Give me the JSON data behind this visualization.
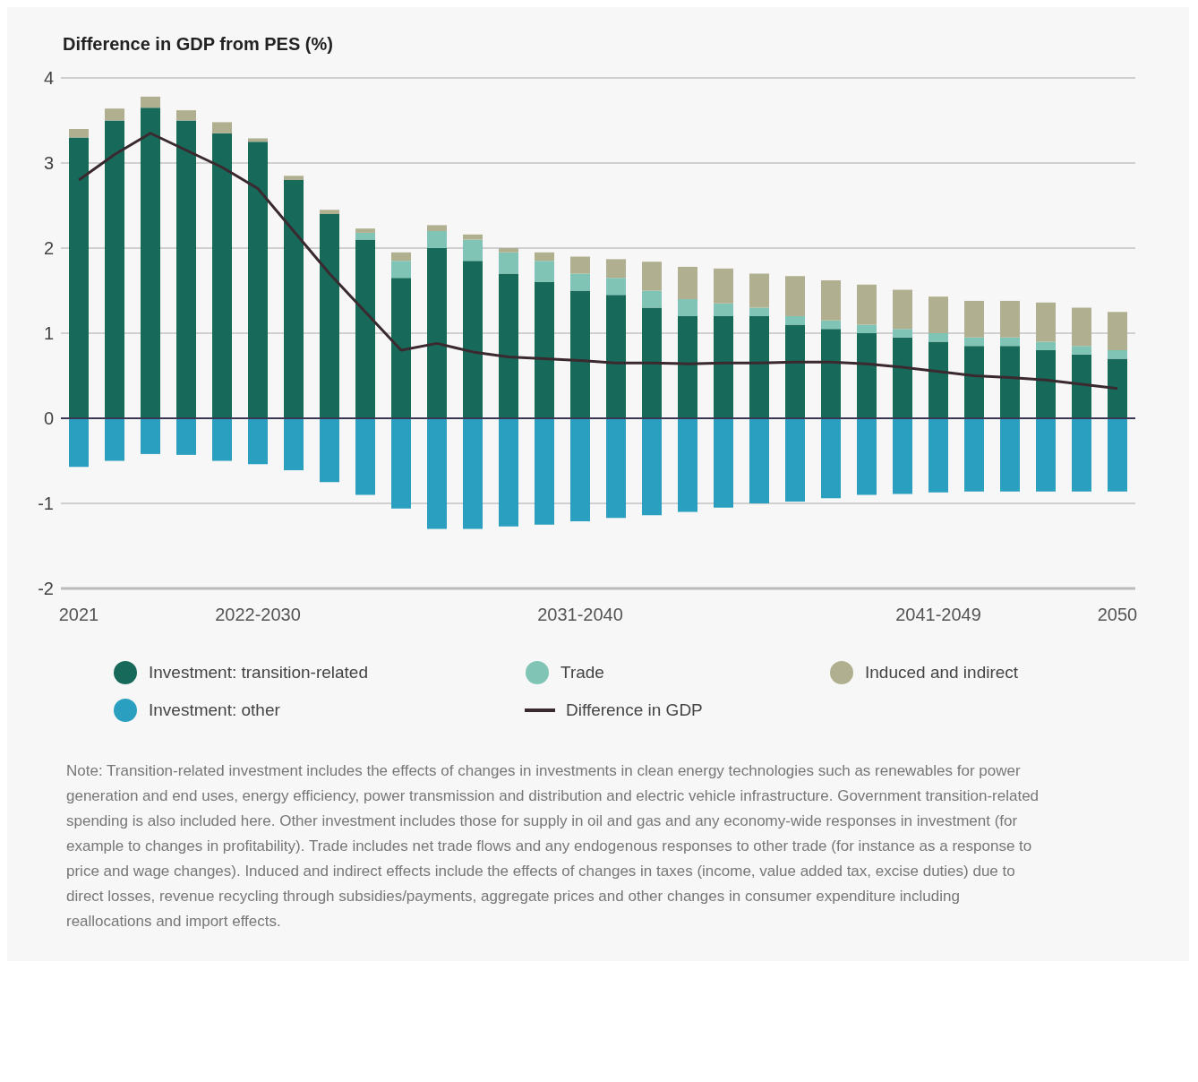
{
  "chart_data": {
    "type": "bar",
    "stacked": true,
    "title": "Difference in GDP from PES (%)",
    "categories": [
      "2021",
      null,
      null,
      null,
      null,
      "2022-2030",
      null,
      null,
      null,
      null,
      null,
      null,
      null,
      null,
      "2031-2040",
      null,
      null,
      null,
      null,
      null,
      null,
      null,
      null,
      null,
      "2041-2049",
      null,
      null,
      null,
      null,
      "2050"
    ],
    "series": [
      {
        "name": "Investment: transition-related",
        "color": "#17695a",
        "values": [
          3.3,
          3.5,
          3.65,
          3.5,
          3.35,
          3.25,
          2.8,
          2.4,
          2.1,
          1.65,
          2.0,
          1.85,
          1.7,
          1.6,
          1.5,
          1.45,
          1.3,
          1.2,
          1.2,
          1.2,
          1.1,
          1.05,
          1.0,
          0.95,
          0.9,
          0.85,
          0.85,
          0.8,
          0.75,
          0.7
        ]
      },
      {
        "name": "Trade",
        "color": "#7fc4b4",
        "values": [
          0,
          0,
          0,
          0,
          0,
          0,
          0,
          0,
          0.08,
          0.2,
          0.2,
          0.25,
          0.25,
          0.25,
          0.2,
          0.2,
          0.2,
          0.2,
          0.15,
          0.1,
          0.1,
          0.1,
          0.1,
          0.1,
          0.1,
          0.1,
          0.1,
          0.1,
          0.1,
          0.1
        ]
      },
      {
        "name": "Induced and indirect",
        "color": "#b0b090",
        "values": [
          0.1,
          0.14,
          0.13,
          0.12,
          0.13,
          0.04,
          0.05,
          0.05,
          0.05,
          0.1,
          0.07,
          0.06,
          0.05,
          0.1,
          0.2,
          0.22,
          0.34,
          0.38,
          0.41,
          0.4,
          0.47,
          0.47,
          0.47,
          0.46,
          0.43,
          0.43,
          0.43,
          0.46,
          0.45,
          0.45
        ]
      },
      {
        "name": "Investment: other",
        "color": "#2a9fc0",
        "values": [
          -0.57,
          -0.5,
          -0.42,
          -0.43,
          -0.5,
          -0.54,
          -0.61,
          -0.75,
          -0.9,
          -1.06,
          -1.3,
          -1.3,
          -1.27,
          -1.25,
          -1.21,
          -1.17,
          -1.14,
          -1.1,
          -1.05,
          -1.0,
          -0.98,
          -0.94,
          -0.9,
          -0.89,
          -0.87,
          -0.86,
          -0.86,
          -0.86,
          -0.86,
          -0.86
        ]
      },
      {
        "name": "Difference in GDP",
        "type": "line",
        "color": "#3a2a30",
        "values": [
          2.8,
          3.1,
          3.35,
          3.15,
          2.95,
          2.7,
          2.2,
          1.7,
          1.25,
          0.8,
          0.88,
          0.78,
          0.72,
          0.7,
          0.68,
          0.65,
          0.65,
          0.64,
          0.65,
          0.65,
          0.66,
          0.66,
          0.64,
          0.6,
          0.55,
          0.5,
          0.48,
          0.45,
          0.4,
          0.35
        ]
      }
    ],
    "ylim": [
      -2,
      4
    ],
    "yticks": [
      -2,
      -1,
      0,
      1,
      2,
      3,
      4
    ],
    "grid": "y",
    "legend": "bottom",
    "marker": "none",
    "ref_lines": [
      {
        "axis": "y",
        "value": 0,
        "color": "#3a3550"
      }
    ],
    "annotations": [
      "Note: Transition-related investment includes the effects of changes in investments in clean energy technologies such as renewables for power generation and end uses, energy efficiency, power transmission and distribution and electric vehicle infrastructure. Government transition-related spending is also included here. Other investment includes those for supply in oil and gas and any economy-wide responses in investment (for example to changes in profitability). Trade includes net trade flows and any endogenous responses to other trade (for instance as a response to price and wage changes). Induced and indirect effects include the effects of changes in taxes (income, value added tax, excise duties) due to direct losses, revenue recycling through subsidies/payments, aggregate prices and other changes in consumer expenditure including reallocations and import effects."
    ]
  }
}
